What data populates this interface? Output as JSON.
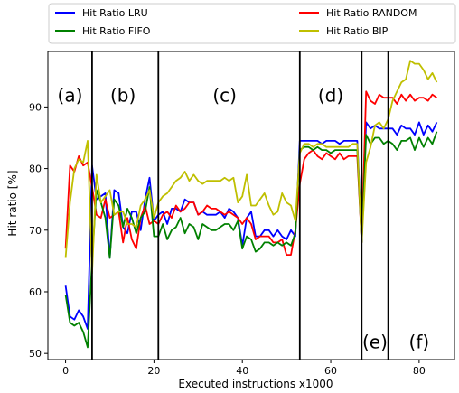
{
  "chart_data": {
    "type": "line",
    "title": "",
    "xlabel": "Executed instructions x1000",
    "ylabel": "Hit ratio [%]",
    "xlim": [
      -4,
      88
    ],
    "ylim": [
      49,
      99
    ],
    "xticks": [
      0,
      20,
      40,
      60,
      80
    ],
    "yticks": [
      50,
      60,
      70,
      80,
      90
    ],
    "xtick_labels": [
      "0",
      "20",
      "40",
      "60",
      "80"
    ],
    "ytick_labels": [
      "50",
      "60",
      "70",
      "80",
      "90"
    ],
    "grid": false,
    "legend": {
      "placement": "top, outside plot",
      "entries": [
        "Hit Ratio LRU",
        "Hit Ratio RANDOM",
        "Hit Ratio FIFO",
        "Hit Ratio BIP"
      ]
    },
    "phase_boundaries": [
      6,
      21,
      53,
      67,
      73
    ],
    "phase_labels": [
      {
        "text": "(a)",
        "x": 1,
        "y": 92
      },
      {
        "text": "(b)",
        "x": 13,
        "y": 92
      },
      {
        "text": "(c)",
        "x": 36,
        "y": 92
      },
      {
        "text": "(d)",
        "x": 60,
        "y": 92
      },
      {
        "text": "(e)",
        "x": 70,
        "y": 52
      },
      {
        "text": "(f)",
        "x": 80,
        "y": 52
      }
    ],
    "series": [
      {
        "name": "Hit Ratio LRU",
        "color": "#0000ff",
        "x": [
          0,
          1,
          2,
          3,
          4,
          5,
          6,
          7,
          8,
          9,
          10,
          11,
          12,
          13,
          14,
          15,
          16,
          17,
          18,
          19,
          20,
          21,
          22,
          23,
          24,
          25,
          26,
          27,
          28,
          29,
          30,
          31,
          32,
          33,
          34,
          35,
          36,
          37,
          38,
          39,
          40,
          41,
          42,
          43,
          44,
          45,
          46,
          47,
          48,
          49,
          50,
          51,
          52,
          53,
          54,
          55,
          56,
          57,
          58,
          59,
          60,
          61,
          62,
          63,
          64,
          65,
          66,
          67,
          68,
          69,
          70,
          71,
          72,
          73,
          74,
          75,
          76,
          77,
          78,
          79,
          80,
          81,
          82,
          83,
          84
        ],
        "values": [
          61,
          56,
          55.5,
          57,
          56,
          54,
          80.5,
          75,
          75.5,
          76,
          65.5,
          76.5,
          76,
          70.5,
          69.5,
          73,
          73,
          70,
          75,
          78.5,
          71.5,
          72.5,
          73,
          71,
          73.5,
          73.5,
          73,
          75,
          74.5,
          74.5,
          72.5,
          73,
          72.5,
          72.5,
          72.5,
          73,
          72,
          73.5,
          73,
          72,
          67.5,
          72,
          73,
          69,
          69,
          70,
          70,
          69,
          70,
          69,
          68.5,
          70,
          69,
          84.5,
          84.5,
          84.5,
          84.5,
          84.5,
          84,
          84.5,
          84.5,
          84.5,
          84,
          84.5,
          84.5,
          84.5,
          84.5,
          69,
          87.5,
          86.5,
          87,
          86.5,
          86.5,
          86.5,
          86.5,
          85.5,
          87,
          86.5,
          86.5,
          85.5,
          87.5,
          85.5,
          87,
          86,
          87.5
        ]
      },
      {
        "name": "Hit Ratio RANDOM",
        "color": "#ff0000",
        "x": [
          0,
          1,
          2,
          3,
          4,
          5,
          6,
          7,
          8,
          9,
          10,
          11,
          12,
          13,
          14,
          15,
          16,
          17,
          18,
          19,
          20,
          21,
          22,
          23,
          24,
          25,
          26,
          27,
          28,
          29,
          30,
          31,
          32,
          33,
          34,
          35,
          36,
          37,
          38,
          39,
          40,
          41,
          42,
          43,
          44,
          45,
          46,
          47,
          48,
          49,
          50,
          51,
          52,
          53,
          54,
          55,
          56,
          57,
          58,
          59,
          60,
          61,
          62,
          63,
          64,
          65,
          66,
          67,
          68,
          69,
          70,
          71,
          72,
          73,
          74,
          75,
          76,
          77,
          78,
          79,
          80,
          81,
          82,
          83,
          84
        ],
        "values": [
          67,
          80.5,
          79.5,
          82,
          80.5,
          81,
          77,
          72.5,
          72,
          75,
          72,
          72.5,
          73,
          68,
          72,
          68.5,
          67,
          72,
          74,
          71,
          71.5,
          71,
          72.5,
          73,
          72,
          74,
          73,
          73.5,
          74.5,
          74.5,
          72.5,
          73,
          74,
          73.5,
          73.5,
          73,
          72.5,
          73,
          72.5,
          72,
          71,
          72,
          71,
          68.5,
          69,
          69,
          69,
          68,
          68,
          68.5,
          66,
          66,
          70,
          77.5,
          81.5,
          82.5,
          83,
          82,
          81.5,
          82.5,
          82,
          81.5,
          82.5,
          81.5,
          82,
          82,
          82,
          68,
          92.5,
          91,
          90.5,
          92,
          91.5,
          91.5,
          91.5,
          90.5,
          92,
          91,
          92,
          91,
          91.5,
          91.5,
          91,
          92,
          91.5
        ]
      },
      {
        "name": "Hit Ratio FIFO",
        "color": "#008000",
        "x": [
          0,
          1,
          2,
          3,
          4,
          5,
          6,
          7,
          8,
          9,
          10,
          11,
          12,
          13,
          14,
          15,
          16,
          17,
          18,
          19,
          20,
          21,
          22,
          23,
          24,
          25,
          26,
          27,
          28,
          29,
          30,
          31,
          32,
          33,
          34,
          35,
          36,
          37,
          38,
          39,
          40,
          41,
          42,
          43,
          44,
          45,
          46,
          47,
          48,
          49,
          50,
          51,
          52,
          53,
          54,
          55,
          56,
          57,
          58,
          59,
          60,
          61,
          62,
          63,
          64,
          65,
          66,
          67,
          68,
          69,
          70,
          71,
          72,
          73,
          74,
          75,
          76,
          77,
          78,
          79,
          80,
          81,
          82,
          83,
          84
        ],
        "values": [
          59.5,
          55,
          54.5,
          55,
          53.5,
          51,
          65,
          76.5,
          74.5,
          72,
          65.5,
          75,
          74,
          70.5,
          73.5,
          72,
          69.5,
          72,
          73,
          77,
          69,
          69,
          71,
          68.5,
          70,
          70.5,
          72,
          69.5,
          71,
          70.5,
          68.5,
          71,
          70.5,
          70,
          70,
          70.5,
          71,
          71,
          70,
          71.5,
          67,
          69,
          68.5,
          66.5,
          67,
          68,
          68,
          67.5,
          68,
          67.5,
          68,
          67.5,
          69.5,
          83,
          83.5,
          83.5,
          83,
          83.5,
          83,
          83,
          82.5,
          83,
          83,
          83,
          83,
          83,
          83,
          68,
          85.5,
          84,
          85,
          85,
          84,
          84.5,
          84,
          83,
          84.5,
          84.5,
          85,
          83,
          85,
          83.5,
          85,
          84,
          86
        ]
      },
      {
        "name": "Hit Ratio BIP",
        "color": "#bfbf00",
        "x": [
          0,
          1,
          2,
          3,
          4,
          5,
          6,
          7,
          8,
          9,
          10,
          11,
          12,
          13,
          14,
          15,
          16,
          17,
          18,
          19,
          20,
          21,
          22,
          23,
          24,
          25,
          26,
          27,
          28,
          29,
          30,
          31,
          32,
          33,
          34,
          35,
          36,
          37,
          38,
          39,
          40,
          41,
          42,
          43,
          44,
          45,
          46,
          47,
          48,
          49,
          50,
          51,
          52,
          53,
          54,
          55,
          56,
          57,
          58,
          59,
          60,
          61,
          62,
          63,
          64,
          65,
          66,
          67,
          68,
          69,
          70,
          71,
          72,
          73,
          74,
          75,
          76,
          77,
          78,
          79,
          80,
          81,
          82,
          83,
          84
        ],
        "values": [
          65.5,
          74.5,
          80,
          81.5,
          81,
          84.5,
          63,
          79,
          74.5,
          75.5,
          76.5,
          72.5,
          73,
          73,
          71,
          71,
          70.5,
          74,
          75,
          76.5,
          72,
          74.5,
          75.5,
          76,
          77,
          78,
          78.5,
          79.5,
          78,
          79,
          78,
          77.5,
          78,
          78,
          78,
          78,
          78.5,
          78,
          78.5,
          74.5,
          75.5,
          79,
          74,
          74,
          75,
          76,
          74,
          72.5,
          73,
          76,
          74.5,
          74,
          71.5,
          82.5,
          84,
          84,
          83.5,
          84,
          84,
          83.5,
          83.5,
          83.5,
          83.5,
          83.5,
          83.5,
          84,
          84,
          68,
          81,
          83.5,
          87,
          87.5,
          86.5,
          88,
          91,
          92.5,
          94,
          94.5,
          97.5,
          97,
          97,
          96,
          94.5,
          95.5,
          94
        ]
      }
    ]
  }
}
